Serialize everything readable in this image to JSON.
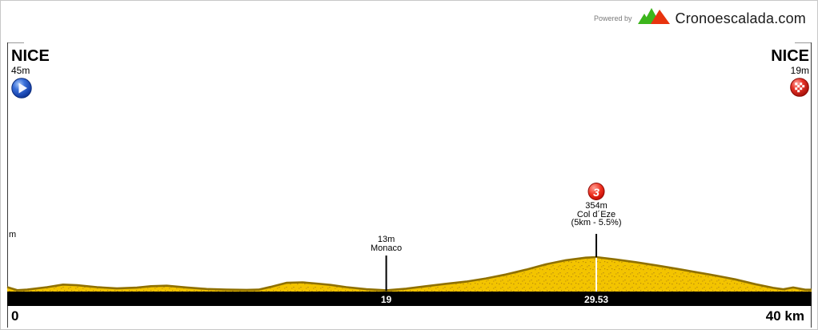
{
  "branding": {
    "powered_by": "Powered by",
    "site": "Cronoescalada.com",
    "logo_colors": {
      "green": "#3cb51c",
      "red": "#e8330e"
    }
  },
  "start": {
    "name": "NICE",
    "elevation": "45m"
  },
  "finish": {
    "name": "NICE",
    "elevation": "19m"
  },
  "axis": {
    "unit_label": "m",
    "start_label": "0",
    "end_label": "40 km"
  },
  "markers": [
    {
      "type": "waypoint",
      "name": "Monaco",
      "elevation_label": "13m",
      "elevation_m": 13,
      "km": 19,
      "km_label": "19"
    },
    {
      "type": "climb",
      "category": "3",
      "name": "Col d´Eze",
      "elevation_label": "354m",
      "detail": "(5km - 5.5%)",
      "elevation_m": 354,
      "km": 29.53,
      "km_label": "29.53"
    }
  ],
  "chart_data": {
    "type": "area",
    "title": "Nice - Nice individual time trial elevation profile",
    "xlabel": "km",
    "ylabel": "m",
    "x_range": [
      0,
      40
    ],
    "y_range": [
      0,
      370
    ],
    "total_distance_label": "40 km",
    "fill_color": "#f3c400",
    "speckle_color": "#c1920a",
    "edge_color": "#8f7000",
    "profile": [
      [
        0,
        45
      ],
      [
        0.5,
        14
      ],
      [
        1,
        20
      ],
      [
        2,
        45
      ],
      [
        2.8,
        72
      ],
      [
        3.5,
        65
      ],
      [
        4.5,
        45
      ],
      [
        5.5,
        32
      ],
      [
        6.5,
        40
      ],
      [
        7.2,
        55
      ],
      [
        8,
        60
      ],
      [
        9,
        42
      ],
      [
        10,
        26
      ],
      [
        11,
        20
      ],
      [
        12,
        17
      ],
      [
        12.6,
        20
      ],
      [
        13.2,
        48
      ],
      [
        14,
        90
      ],
      [
        14.8,
        95
      ],
      [
        15.5,
        82
      ],
      [
        16.2,
        68
      ],
      [
        17,
        45
      ],
      [
        18,
        24
      ],
      [
        19,
        13
      ],
      [
        20,
        30
      ],
      [
        21,
        55
      ],
      [
        22,
        80
      ],
      [
        23,
        102
      ],
      [
        24,
        135
      ],
      [
        25,
        175
      ],
      [
        26,
        225
      ],
      [
        27,
        280
      ],
      [
        28,
        322
      ],
      [
        29,
        348
      ],
      [
        29.53,
        354
      ],
      [
        30.5,
        330
      ],
      [
        31.5,
        302
      ],
      [
        32.5,
        270
      ],
      [
        33.5,
        236
      ],
      [
        34.5,
        200
      ],
      [
        35.5,
        165
      ],
      [
        36.5,
        125
      ],
      [
        37.5,
        76
      ],
      [
        38.4,
        38
      ],
      [
        38.9,
        23
      ],
      [
        39.4,
        42
      ],
      [
        40,
        19
      ]
    ]
  }
}
